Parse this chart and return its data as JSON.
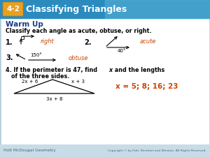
{
  "title": "Classifying Triangles",
  "title_badge": "4-2",
  "title_bg_left": "#1a6fa0",
  "title_bg_right": "#5ab5d8",
  "title_badge_color": "#e8a020",
  "title_text_color": "white",
  "warm_up_text": "Warm Up",
  "warm_up_color": "#1a3a8a",
  "instruction": "Classify each angle as acute, obtuse, or right.",
  "answer1_text": "right",
  "answer_color": "#cc4400",
  "answer2_angle": "40°",
  "answer2_text": "acute",
  "answer3_angle": "150°",
  "answer3_text": "obtuse",
  "problem4_line1": "4. If the perimeter is 47, find ",
  "problem4_x": "x",
  "problem4_line1b": " and the lengths",
  "problem4_line2": "of the three sides.",
  "side1": "2x + 6",
  "side2": "x + 3",
  "side3": "3x + 8",
  "answer4": "x = 5; 8; 16; 23",
  "answer4_color": "#cc4400",
  "footer_left": "Holt McDougal Geometry",
  "footer_right": "Copyright © by Holt, Rinehart and Winston. All Rights Reserved.",
  "footer_bg": "#c8dce8",
  "footer_text_color": "#446677",
  "body_bg": "white",
  "body_border": "#dddddd"
}
